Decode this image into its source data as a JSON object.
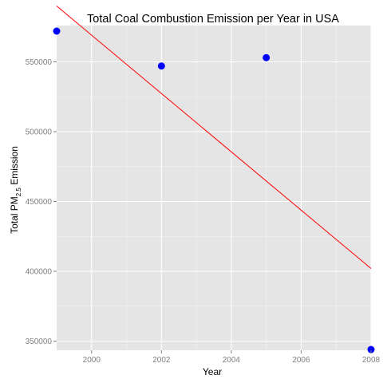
{
  "chart_data": {
    "type": "scatter",
    "title": "Total Coal Combustion Emission per Year in USA",
    "xlabel": "Year",
    "ylabel": {
      "prefix": "Total PM",
      "subscript": "2.5",
      "suffix": " Emission"
    },
    "xlim": [
      1999,
      2008
    ],
    "ylim": [
      343432,
      576000
    ],
    "x_ticks": [
      2000,
      2002,
      2004,
      2006,
      2008
    ],
    "y_ticks": [
      350000,
      400000,
      450000,
      500000,
      550000
    ],
    "y_tick_labels": [
      "350000",
      "400000",
      "450000",
      "500000",
      "550000"
    ],
    "points": [
      {
        "x": 1999,
        "y": 572000
      },
      {
        "x": 2002,
        "y": 547000
      },
      {
        "x": 2005,
        "y": 553000
      },
      {
        "x": 2008,
        "y": 344000
      }
    ],
    "trendline": {
      "type": "linear",
      "points": [
        {
          "x": 1999,
          "y": 590000
        },
        {
          "x": 2008,
          "y": 402000
        }
      ]
    },
    "grid": true,
    "legend": "none",
    "colors": {
      "panel_background": "#e5e5e5",
      "grid_major": "#ffffff",
      "grid_minor": "#f2f2f2",
      "point": "#0000ff",
      "trendline": "#ff0000",
      "tick_label": "#7f7f7f"
    }
  }
}
